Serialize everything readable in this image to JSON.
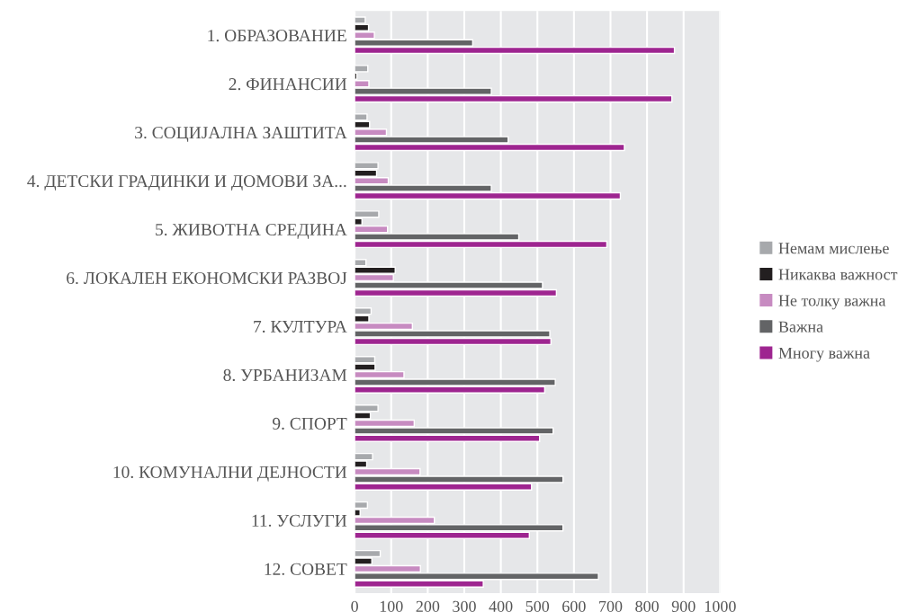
{
  "chart_data": {
    "type": "bar",
    "orientation": "horizontal",
    "categories": [
      "1. ОБРАЗОВАНИЕ",
      "2. ФИНАНСИИ",
      "3. СОЦИЈАЛНА ЗАШТИТА",
      "4. ДЕТСКИ ГРАДИНКИ И ДОМОВИ ЗА...",
      "5. ЖИВОТНА СРЕДИНА",
      "6. ЛОКАЛЕН ЕКОНОМСКИ РАЗВОЈ",
      "7. КУЛТУРА",
      "8. УРБАНИЗАМ",
      "9. СПОРТ",
      "10. КОМУНАЛНИ ДЕЈНОСТИ",
      "11. УСЛУГИ",
      "12. СОВЕТ"
    ],
    "series": [
      {
        "name": "Немам мислење",
        "color": "#a7a9ac",
        "values": [
          29,
          36,
          34,
          64,
          66,
          31,
          45,
          55,
          64,
          49,
          35,
          70
        ]
      },
      {
        "name": "Никаква важност",
        "color": "#231f20",
        "values": [
          38,
          6,
          41,
          60,
          20,
          111,
          39,
          56,
          43,
          33,
          15,
          47
        ]
      },
      {
        "name": "Не толку важна",
        "color": "#c78bc1",
        "values": [
          54,
          39,
          87,
          92,
          90,
          106,
          158,
          135,
          163,
          179,
          218,
          180
        ]
      },
      {
        "name": "Важна",
        "color": "#636466",
        "values": [
          323,
          374,
          420,
          374,
          449,
          514,
          534,
          549,
          543,
          570,
          570,
          667
        ]
      },
      {
        "name": "Многу важна",
        "color": "#9e2590",
        "values": [
          875,
          868,
          738,
          727,
          690,
          552,
          537,
          520,
          506,
          484,
          478,
          352
        ]
      }
    ],
    "xlim": [
      0,
      1000
    ],
    "xticks": [
      0,
      100,
      200,
      300,
      400,
      500,
      600,
      700,
      800,
      900,
      1000
    ],
    "grid": "x",
    "legend": "right"
  }
}
